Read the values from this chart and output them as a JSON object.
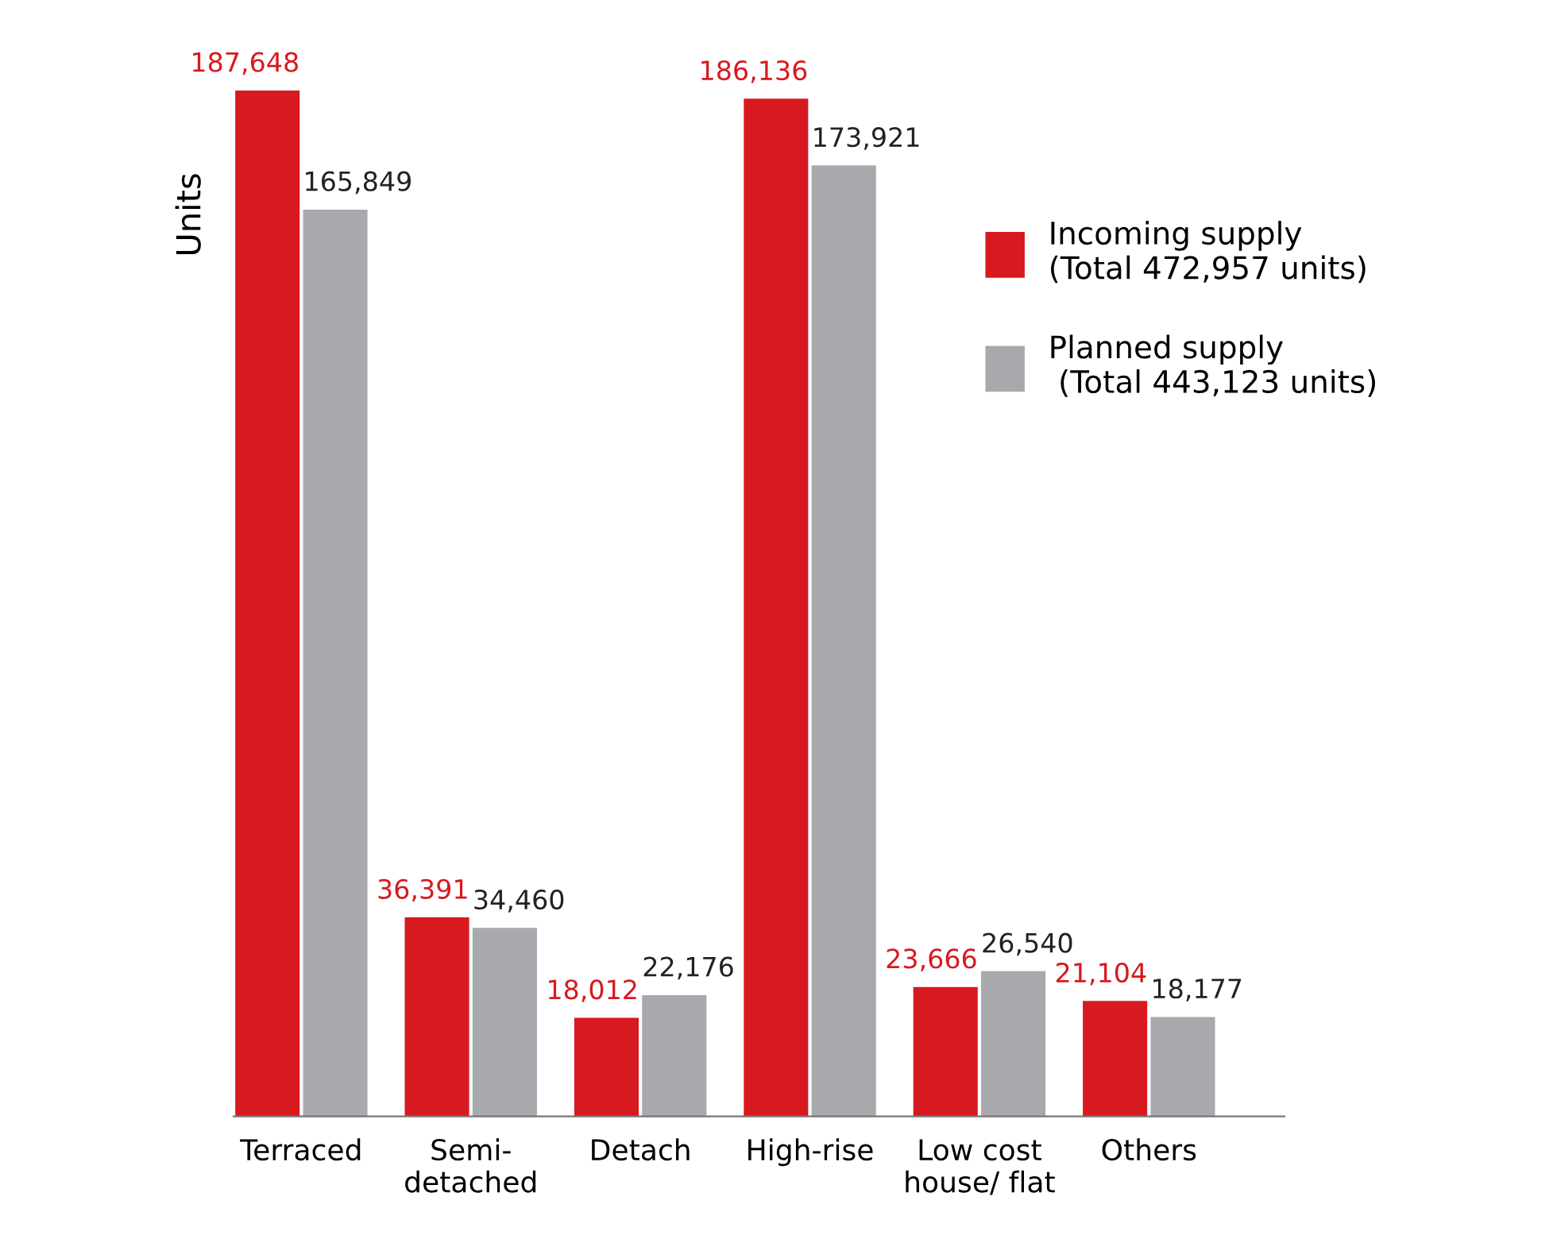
{
  "chart_data": {
    "type": "bar",
    "ylabel": "Units",
    "categories": [
      "Terraced",
      "Semi-\ndetached",
      "Detach",
      "High-rise",
      "Low cost\nhouse/ flat",
      "Others"
    ],
    "series": [
      {
        "name": "Incoming supply\n(Total 472,957 units)",
        "color": "#d71920",
        "values": [
          187648,
          36391,
          18012,
          186136,
          23666,
          21104
        ],
        "value_labels": [
          "187,648",
          "36,391",
          "18,012",
          "186,136",
          "23,666",
          "21,104"
        ]
      },
      {
        "name": "Planned supply\n (Total 443,123 units)",
        "color": "#a7a9ac",
        "values": [
          165849,
          34460,
          22176,
          173921,
          26540,
          18177
        ],
        "value_labels": [
          "165,849",
          "34,460",
          "22,176",
          "173,921",
          "26,540",
          "18,177"
        ]
      }
    ],
    "legend": "right",
    "tick_labels": "x",
    "grid": false
  }
}
